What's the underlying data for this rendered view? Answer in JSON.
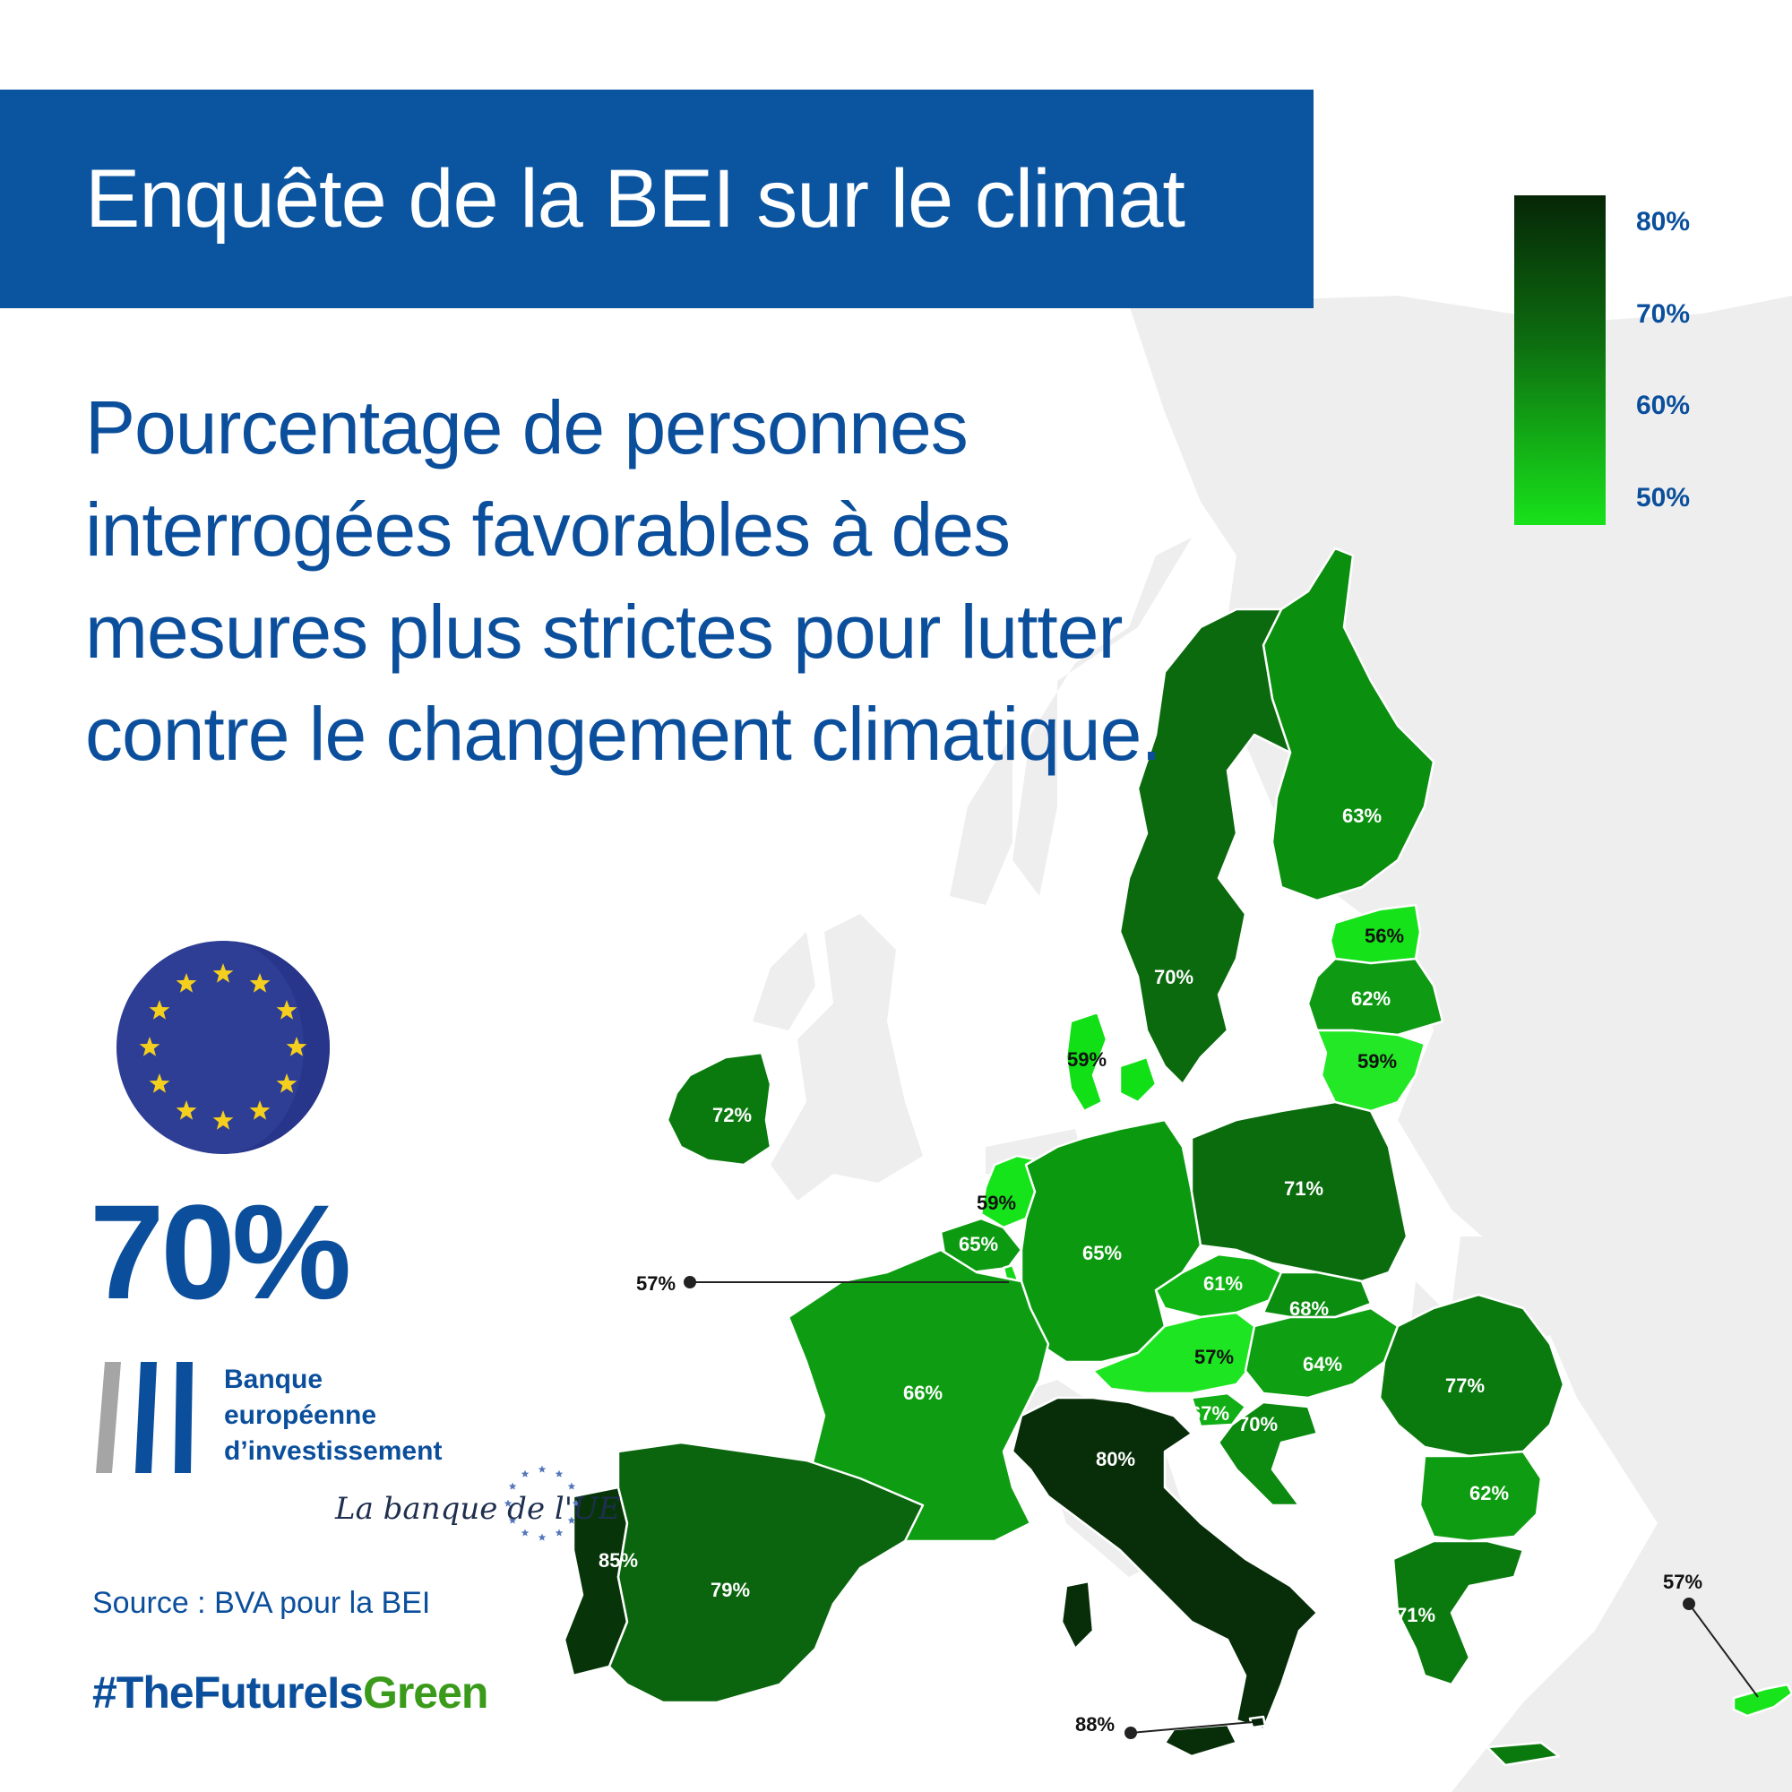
{
  "banner": {
    "title": "Enquête de la BEI sur le climat"
  },
  "subtitle": "Pourcentage de personnes interrogées favorables à des mesures plus strictes pour lutter contre le changement climatique.",
  "eu_average": "70%",
  "legend": {
    "labels": [
      "80%",
      "70%",
      "60%",
      "50%"
    ]
  },
  "logo": {
    "line1": "Banque",
    "line2": "européenne",
    "line3": "d’investissement",
    "tagline": "La banque de l'UE"
  },
  "source": "Source : BVA pour la BEI",
  "hashtag": {
    "part1": "#TheFutureIs",
    "part2": "Green"
  },
  "colors": {
    "banner": "#0b55a0",
    "text_blue": "#0b4f9c",
    "scale_high": "#062606",
    "scale_mid": "#0d6e10",
    "scale_low": "#18e21b",
    "land_other": "#eeeeee"
  },
  "countries": [
    {
      "id": "finland",
      "value": "63%"
    },
    {
      "id": "sweden",
      "value": "70%"
    },
    {
      "id": "estonia",
      "value": "56%"
    },
    {
      "id": "latvia",
      "value": "62%"
    },
    {
      "id": "lithuania",
      "value": "59%"
    },
    {
      "id": "denmark",
      "value": "59%"
    },
    {
      "id": "ireland",
      "value": "72%"
    },
    {
      "id": "netherlands",
      "value": "59%"
    },
    {
      "id": "belgium",
      "value": "65%"
    },
    {
      "id": "luxembourg",
      "value": "57%"
    },
    {
      "id": "germany",
      "value": "65%"
    },
    {
      "id": "poland",
      "value": "71%"
    },
    {
      "id": "czechia",
      "value": "61%"
    },
    {
      "id": "slovakia",
      "value": "68%"
    },
    {
      "id": "austria",
      "value": "57%"
    },
    {
      "id": "hungary",
      "value": "64%"
    },
    {
      "id": "romania",
      "value": "77%"
    },
    {
      "id": "slovenia",
      "value": "67%"
    },
    {
      "id": "croatia",
      "value": "70%"
    },
    {
      "id": "france",
      "value": "66%"
    },
    {
      "id": "italy",
      "value": "80%"
    },
    {
      "id": "bulgaria",
      "value": "62%"
    },
    {
      "id": "greece",
      "value": "71%"
    },
    {
      "id": "portugal",
      "value": "85%"
    },
    {
      "id": "spain",
      "value": "79%"
    },
    {
      "id": "malta",
      "value": "88%"
    },
    {
      "id": "cyprus",
      "value": "57%"
    }
  ]
}
